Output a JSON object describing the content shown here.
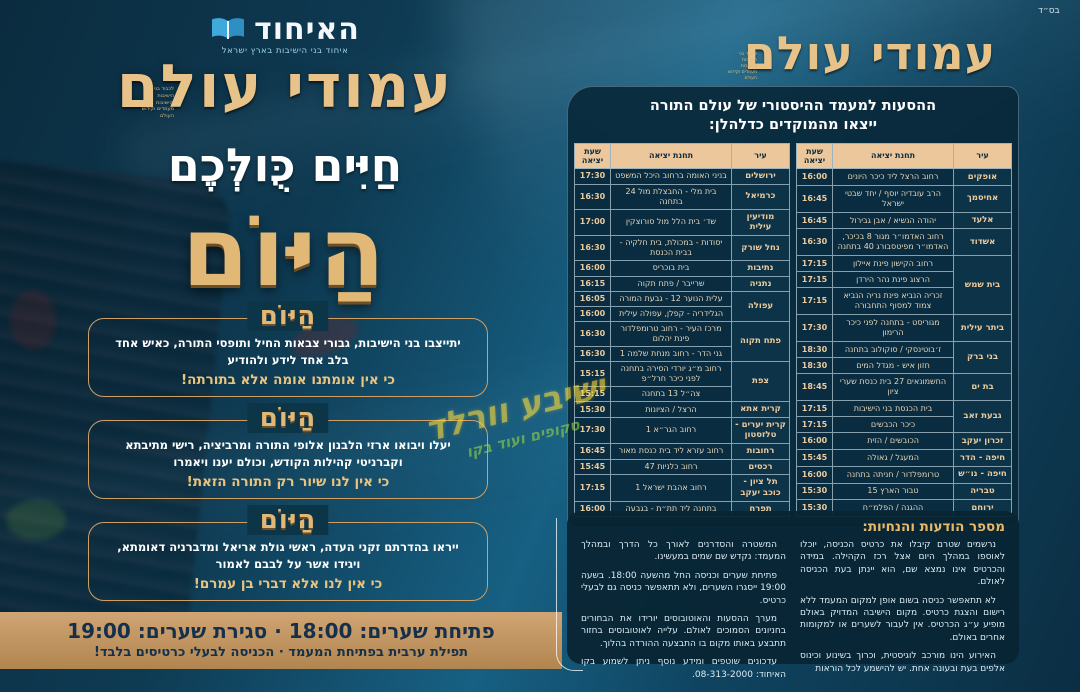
{
  "bsd": "בס״ד",
  "left": {
    "logo": {
      "title": "האיחוד",
      "subtitle": "איחוד בני הישיבות בארץ ישראל",
      "icon": "open-book-icon"
    },
    "brand_title": "עמודי עולם",
    "brand_tiny": "לכבוד בני הישיבות והישיבות מעמדים וקידוש העולם",
    "headline_top": "חַיִּים כֻּולְּכֶם",
    "headline_main": "הַיּוֹם",
    "boxes": [
      {
        "heading": "הַיּוֹם",
        "body": "יתייצבו בני הישיבות, גבורי צבאות החיל ותופסי התורה, כאיש אחד בלב אחד לידע ולהודיע",
        "emphasis": "כי אין אומתנו אומה אלא בתורתה!"
      },
      {
        "heading": "הַיּוֹם",
        "body": "יעלו ויבואו ארזי הלבנון אלופי התורה ומרביציה, רישי מתיבתא וקברניטי קהילות הקודש, וכולם יענו ויאמרו",
        "emphasis": "כי אין לנו שיור רק התורה הזאת!"
      },
      {
        "heading": "הַיּוֹם",
        "body": "ייראו בהדרתם זקני העדה, ראשי גולת אריאל ומדברניה דאומתא, ויגידו אשר על לבבם לאמור",
        "emphasis": "כי אין לנו אלא דברי בן עמרם!"
      }
    ],
    "footer_line1": "פתיחת שערים: 18:00 · סגירת שערים: 19:00",
    "footer_line2": "תפילת ערבית בפתיחת המעמד · הכניסה לבעלי כרטיסים בלבד!"
  },
  "right": {
    "brand_title": "עמודי עולם",
    "brand_tiny": "לכבוד בני הישיבות והישיבות מעמדים וקידוש העולם",
    "transport": {
      "header_line1": "ההסעות למעמד ההיסטורי של עולם התורה",
      "header_line2": "ייצאו מהמוקדים כדלהלן:",
      "columns": {
        "city": "עיר",
        "station": "תחנת יציאה",
        "time": "שעת יציאה"
      },
      "first_half_groups": [
        {
          "city": "אופקים",
          "stops": [
            {
              "station": "רחוב הרצל ליד כיכר היונים",
              "time": "16:00"
            }
          ]
        },
        {
          "city": "אחיסמך",
          "stops": [
            {
              "station": "הרב עובדיה יוסף / יחד שבטי ישראל",
              "time": "16:45"
            }
          ]
        },
        {
          "city": "אלעד",
          "stops": [
            {
              "station": "יהודה הנשיא / אבן גבירול",
              "time": "16:45"
            }
          ]
        },
        {
          "city": "אשדוד",
          "stops": [
            {
              "station": "רחוב האדמו״ר מגור 8 בכיכר, האדמו״ר מפיטסבורג 40 בתחנה",
              "time": "16:30"
            }
          ]
        },
        {
          "city": "בית שמש",
          "stops": [
            {
              "station": "רחוב הקישון פינת איילון",
              "time": "17:15"
            },
            {
              "station": "הרצוג פינת נהר הירדן",
              "time": "17:15"
            },
            {
              "station": "זכריה הנביא פינת נריה הנביא צמוד למסוף התחבורה",
              "time": "17:15"
            }
          ]
        },
        {
          "city": "ביתר עילית",
          "stops": [
            {
              "station": "מגוריסט - בתחנה לפני כיכר הרימון",
              "time": "17:30"
            }
          ]
        },
        {
          "city": "בני ברק",
          "stops": [
            {
              "station": "ז׳בוטינסקי / סוקולוב בתחנה",
              "time": "18:30"
            },
            {
              "station": "חזון איש - מגדל המים",
              "time": "18:30"
            }
          ]
        },
        {
          "city": "בת ים",
          "stops": [
            {
              "station": "החשמונאים 27 בית כנסת שערי ציון",
              "time": "18:45"
            }
          ]
        },
        {
          "city": "גבעת זאב",
          "stops": [
            {
              "station": "בית הכנסת בני הישיבות",
              "time": "17:15"
            },
            {
              "station": "כיכר הכבשים",
              "time": "17:15"
            }
          ]
        },
        {
          "city": "זכרון יעקב",
          "stops": [
            {
              "station": "הכובשים / הזית",
              "time": "16:00"
            }
          ]
        },
        {
          "city": "חיפה - הדר",
          "stops": [
            {
              "station": "המעגל / גאולה",
              "time": "15:45"
            }
          ]
        },
        {
          "city": "חיפה - נו״ש",
          "stops": [
            {
              "station": "טרומפלדור / חניתה בתחנה",
              "time": "16:00"
            }
          ]
        },
        {
          "city": "טבריה",
          "stops": [
            {
              "station": "טבור הארץ 15",
              "time": "15:30"
            }
          ]
        },
        {
          "city": "ירוחם",
          "stops": [
            {
              "station": "ההגנה / הפלמ״ח",
              "time": "15:30"
            }
          ]
        }
      ],
      "second_half_groups": [
        {
          "city": "ירושלים",
          "stops": [
            {
              "station": "בניני האומה ברחוב היכל המשפט",
              "time": "17:30"
            }
          ]
        },
        {
          "city": "כרמיאל",
          "stops": [
            {
              "station": "בית מלי - החבצלת מול 24 בתחנה",
              "time": "16:30"
            }
          ]
        },
        {
          "city": "מודיעין עילית",
          "stops": [
            {
              "station": "שד׳ בית הלל מול סורוצקין",
              "time": "17:00"
            }
          ]
        },
        {
          "city": "נחל שורק",
          "stops": [
            {
              "station": "יסודות - במכולת, בית חלקיה - בבית הכנסת",
              "time": "16:30"
            }
          ]
        },
        {
          "city": "נתיבות",
          "stops": [
            {
              "station": "בית בוכריס",
              "time": "16:00"
            }
          ]
        },
        {
          "city": "נתניה",
          "stops": [
            {
              "station": "שרייבר / פתח תקוה",
              "time": "16:15"
            }
          ]
        },
        {
          "city": "עפולה",
          "stops": [
            {
              "station": "עלית הנוער 12 - גבעת המורה",
              "time": "16:05"
            },
            {
              "station": "הגלידריה - קפלן, עפולה עילית",
              "time": "16:00"
            }
          ]
        },
        {
          "city": "פתח תקוה",
          "stops": [
            {
              "station": "מרכז העיר - רחוב טרומפלדור פינת יהלום",
              "time": "16:30"
            },
            {
              "station": "גני הדר - רחוב מנחת שלמה 1",
              "time": "16:30"
            }
          ]
        },
        {
          "city": "צפת",
          "stops": [
            {
              "station": "רחוב מ״ג יורדי הסירה בתחנה לפני כיכר חרל״פ",
              "time": "15:15"
            },
            {
              "station": "צה״ל 13 בתחנה",
              "time": "15:15"
            }
          ]
        },
        {
          "city": "קרית אתא",
          "stops": [
            {
              "station": "הרצל / הציונות",
              "time": "15:30"
            }
          ]
        },
        {
          "city": "קרית יערים - טלזסטון",
          "stops": [
            {
              "station": "רחוב הגר״א 1",
              "time": "17:30"
            }
          ]
        },
        {
          "city": "רחובות",
          "stops": [
            {
              "station": "רחוב עזרא ליד בית כנסת מאור",
              "time": "16:45"
            }
          ]
        },
        {
          "city": "רכסים",
          "stops": [
            {
              "station": "רחוב כלניות 47",
              "time": "15:45"
            }
          ]
        },
        {
          "city": "תל ציון - כוכב יעקב",
          "stops": [
            {
              "station": "רחוב אהבת ישראל 1",
              "time": "17:15"
            }
          ]
        },
        {
          "city": "תפרח",
          "stops": [
            {
              "station": "בתחנה ליד תת״ת - בגבעה",
              "time": "16:00"
            }
          ]
        }
      ]
    },
    "notices": {
      "title": "מספר הודעות והנחיות:",
      "col_right": [
        "נרשמים שטרם קיבלו את כרטיס הכניסה, יוכלו לאוספו במהלך היום אצל רכז הקהילה. במידה והכרטיס אינו נמצא שם, הוא יינתן בעת הכניסה לאולם.",
        "לא תתאפשר כניסה בשום אופן למקום המעמד ללא רישום והצגת כרטיס. מקום הישיבה המדויק באולם מופיע ע״ג הכרטיס. אין לעבור לשערים או למקומות אחרים באולם.",
        "האירוע הינו מורכב לוגיסטית, וכרוך בשינוע וכינוס אלפים בעת ובעונה אחת. יש להישמע לכל הוראות"
      ],
      "col_left": [
        "המשטרה והסדרנים לאורך כל הדרך ובמהלך המעמד: נקדש שם שמים במעשינו.",
        "פתיחת שערים וכניסה החל מהשעה 18:00. בשעה 19:00 ייסגרו השערים, ולא תתאפשר כניסה גם לבעלי כרטיס.",
        "מערך ההסעות והאוטובוסים יורידו את הבחורים בחניונים הסמוכים לאולם. עלייה לאוטובוסים בחזור תתבצע באותו מקום בו התבצעה ההורדה בהלוך.",
        "עדכונים שוטפים ומידע נוסף ניתן לשמוע בקו האיחוד: 08-313-2000."
      ]
    }
  },
  "watermark": {
    "line1": "ישיבע וורלד",
    "line2": "סקופים ועוד בקו"
  }
}
